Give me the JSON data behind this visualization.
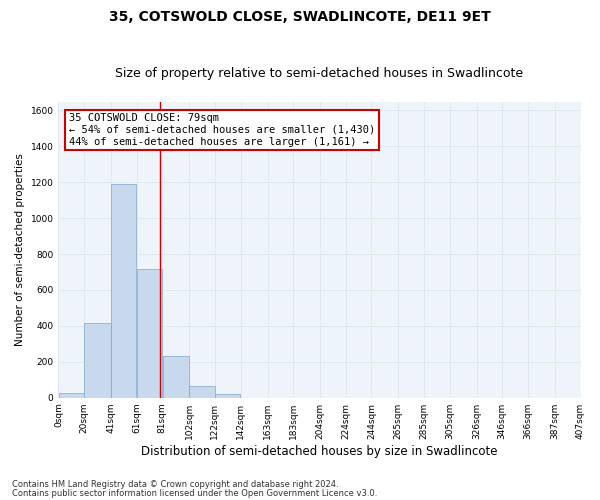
{
  "title": "35, COTSWOLD CLOSE, SWADLINCOTE, DE11 9ET",
  "subtitle": "Size of property relative to semi-detached houses in Swadlincote",
  "xlabel": "Distribution of semi-detached houses by size in Swadlincote",
  "ylabel": "Number of semi-detached properties",
  "footnote1": "Contains HM Land Registry data © Crown copyright and database right 2024.",
  "footnote2": "Contains public sector information licensed under the Open Government Licence v3.0.",
  "annotation_title": "35 COTSWOLD CLOSE: 79sqm",
  "annotation_line1": "← 54% of semi-detached houses are smaller (1,430)",
  "annotation_line2": "44% of semi-detached houses are larger (1,161) →",
  "property_size": 79,
  "bar_left_edges": [
    0,
    20,
    41,
    61,
    81,
    102,
    122,
    142,
    163,
    183,
    204,
    224,
    244,
    265,
    285,
    305,
    326,
    346,
    366,
    387
  ],
  "bar_heights": [
    25,
    415,
    1190,
    715,
    230,
    65,
    20,
    0,
    0,
    0,
    0,
    0,
    0,
    0,
    0,
    0,
    0,
    0,
    0,
    0
  ],
  "bar_color": "#c8d8ed",
  "bar_edgecolor": "#7fa8cd",
  "vline_color": "#cc0000",
  "vline_x": 79,
  "ylim": [
    0,
    1650
  ],
  "yticks": [
    0,
    200,
    400,
    600,
    800,
    1000,
    1200,
    1400,
    1600
  ],
  "xtick_labels": [
    "0sqm",
    "20sqm",
    "41sqm",
    "61sqm",
    "81sqm",
    "102sqm",
    "122sqm",
    "142sqm",
    "163sqm",
    "183sqm",
    "204sqm",
    "224sqm",
    "244sqm",
    "265sqm",
    "285sqm",
    "305sqm",
    "326sqm",
    "346sqm",
    "366sqm",
    "387sqm",
    "407sqm"
  ],
  "grid_color": "#dde8f0",
  "bg_color": "#eef4fa",
  "annotation_box_color": "#cc0000",
  "title_fontsize": 10,
  "subtitle_fontsize": 9,
  "xlabel_fontsize": 8.5,
  "ylabel_fontsize": 7.5,
  "tick_fontsize": 6.5,
  "annotation_fontsize": 7.5,
  "footnote_fontsize": 6
}
